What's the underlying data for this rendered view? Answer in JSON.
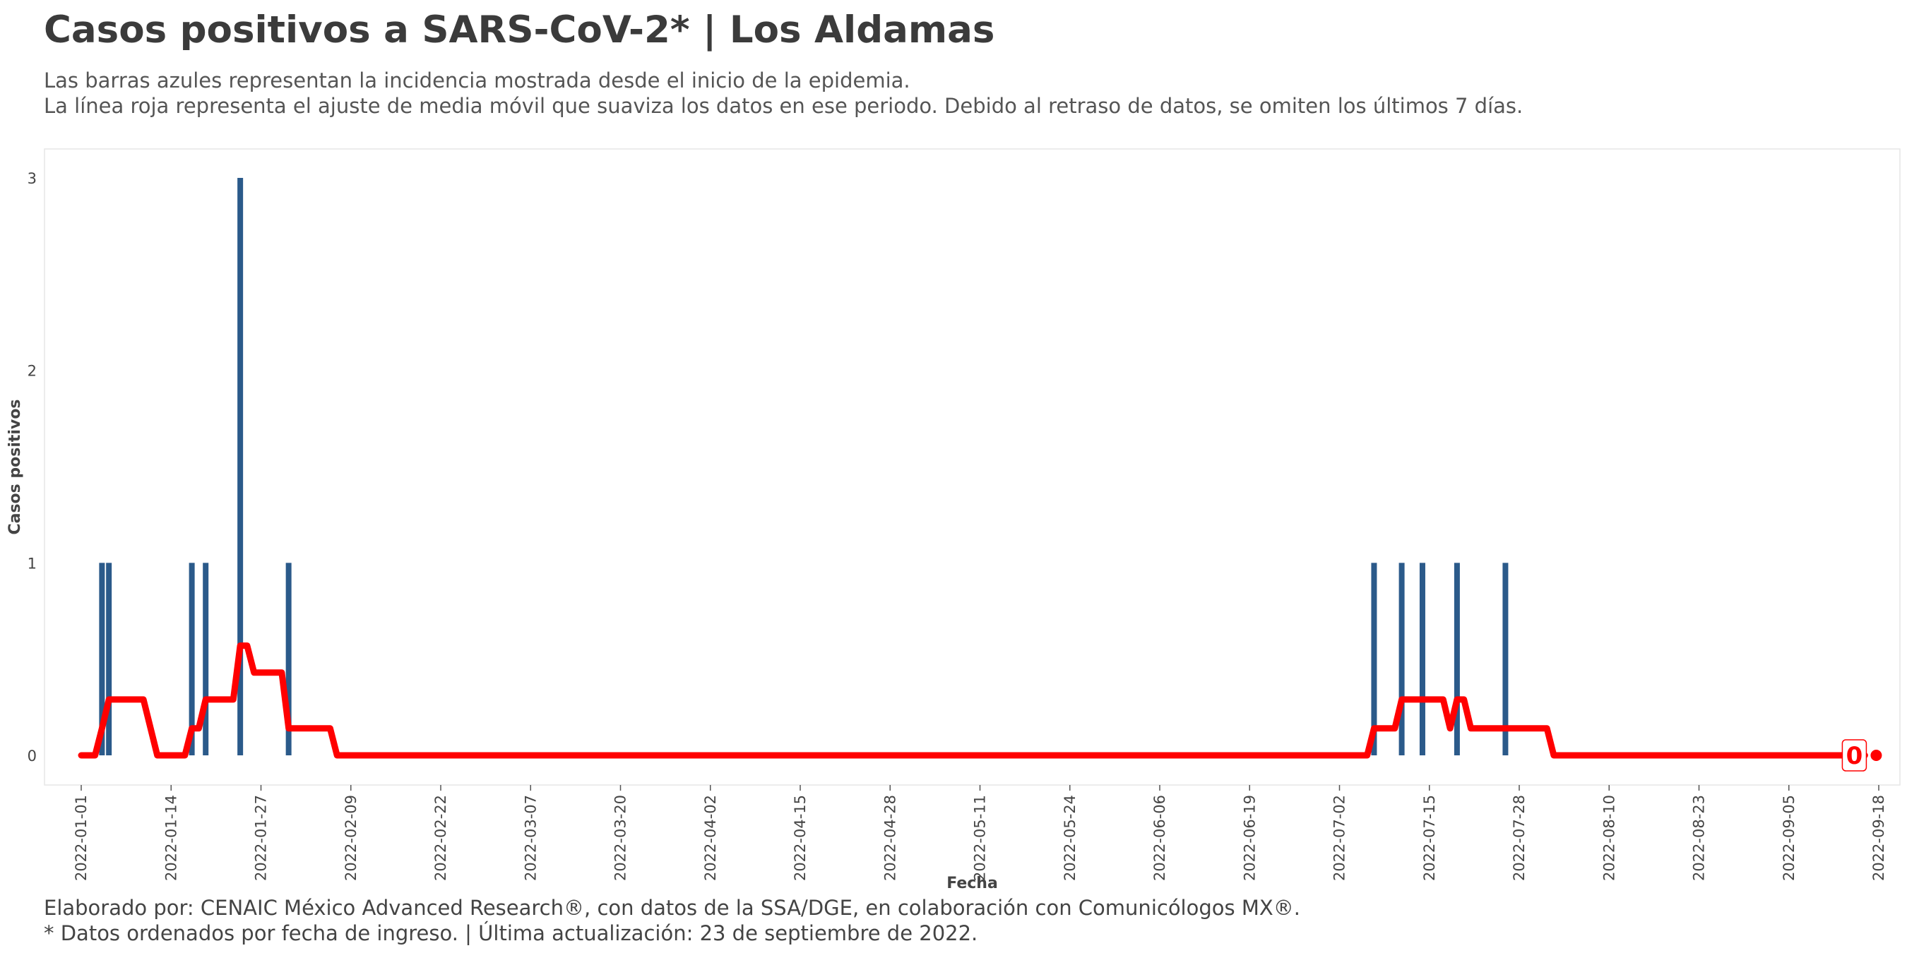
{
  "header": {
    "title": "Casos positivos a SARS-CoV-2* | Los Aldamas",
    "subtitle_line1": "Las barras azules representan la incidencia mostrada desde el inicio de la epidemia.",
    "subtitle_line2": "La línea roja representa el ajuste de media móvil que suaviza los datos en ese periodo. Debido al retraso de datos, se omiten los últimos 7 días."
  },
  "footer": {
    "caption_line1": "Elaborado por: CENAIC México Advanced Research®, con datos de la SSA/DGE, en colaboración con Comunicólogos MX®.",
    "caption_line2": "* Datos ordenados por fecha de ingreso. | Última actualización: 23 de septiembre de 2022."
  },
  "colors": {
    "bars": "#2b5a8a",
    "line": "#ff0000",
    "panel_border": "#e6e6e6"
  },
  "chart_data": {
    "type": "bar",
    "xlabel": "Fecha",
    "ylabel": "Casos positivos",
    "date_range": [
      "2022-01-01",
      "2022-09-18"
    ],
    "ylim": [
      0,
      3
    ],
    "y_ticks": [
      0,
      1,
      2,
      3
    ],
    "x_ticks": [
      "2022-01-01",
      "2022-01-14",
      "2022-01-27",
      "2022-02-09",
      "2022-02-22",
      "2022-03-07",
      "2022-03-20",
      "2022-04-02",
      "2022-04-15",
      "2022-04-28",
      "2022-05-11",
      "2022-05-24",
      "2022-06-06",
      "2022-06-19",
      "2022-07-02",
      "2022-07-15",
      "2022-07-28",
      "2022-08-10",
      "2022-08-23",
      "2022-09-05",
      "2022-09-18"
    ],
    "grid": false,
    "bars": [
      {
        "date": "2022-01-04",
        "value": 1
      },
      {
        "date": "2022-01-05",
        "value": 1
      },
      {
        "date": "2022-01-17",
        "value": 1
      },
      {
        "date": "2022-01-19",
        "value": 1
      },
      {
        "date": "2022-01-24",
        "value": 3
      },
      {
        "date": "2022-01-31",
        "value": 1
      },
      {
        "date": "2022-07-07",
        "value": 1
      },
      {
        "date": "2022-07-11",
        "value": 1
      },
      {
        "date": "2022-07-14",
        "value": 1
      },
      {
        "date": "2022-07-19",
        "value": 1
      },
      {
        "date": "2022-07-26",
        "value": 1
      }
    ],
    "moving_average": {
      "label": "0",
      "points": [
        {
          "date": "2022-01-01",
          "value": 0
        },
        {
          "date": "2022-01-03",
          "value": 0
        },
        {
          "date": "2022-01-04",
          "value": 0.14
        },
        {
          "date": "2022-01-05",
          "value": 0.29
        },
        {
          "date": "2022-01-10",
          "value": 0.29
        },
        {
          "date": "2022-01-12",
          "value": 0
        },
        {
          "date": "2022-01-16",
          "value": 0
        },
        {
          "date": "2022-01-17",
          "value": 0.14
        },
        {
          "date": "2022-01-18",
          "value": 0.14
        },
        {
          "date": "2022-01-19",
          "value": 0.29
        },
        {
          "date": "2022-01-23",
          "value": 0.29
        },
        {
          "date": "2022-01-24",
          "value": 0.57
        },
        {
          "date": "2022-01-25",
          "value": 0.57
        },
        {
          "date": "2022-01-26",
          "value": 0.43
        },
        {
          "date": "2022-01-30",
          "value": 0.43
        },
        {
          "date": "2022-01-31",
          "value": 0.14
        },
        {
          "date": "2022-02-06",
          "value": 0.14
        },
        {
          "date": "2022-02-07",
          "value": 0
        },
        {
          "date": "2022-07-06",
          "value": 0
        },
        {
          "date": "2022-07-07",
          "value": 0.14
        },
        {
          "date": "2022-07-10",
          "value": 0.14
        },
        {
          "date": "2022-07-11",
          "value": 0.29
        },
        {
          "date": "2022-07-17",
          "value": 0.29
        },
        {
          "date": "2022-07-18",
          "value": 0.14
        },
        {
          "date": "2022-07-19",
          "value": 0.29
        },
        {
          "date": "2022-07-20",
          "value": 0.29
        },
        {
          "date": "2022-07-21",
          "value": 0.14
        },
        {
          "date": "2022-08-01",
          "value": 0.14
        },
        {
          "date": "2022-08-02",
          "value": 0
        },
        {
          "date": "2022-09-16",
          "value": 0
        }
      ]
    }
  }
}
